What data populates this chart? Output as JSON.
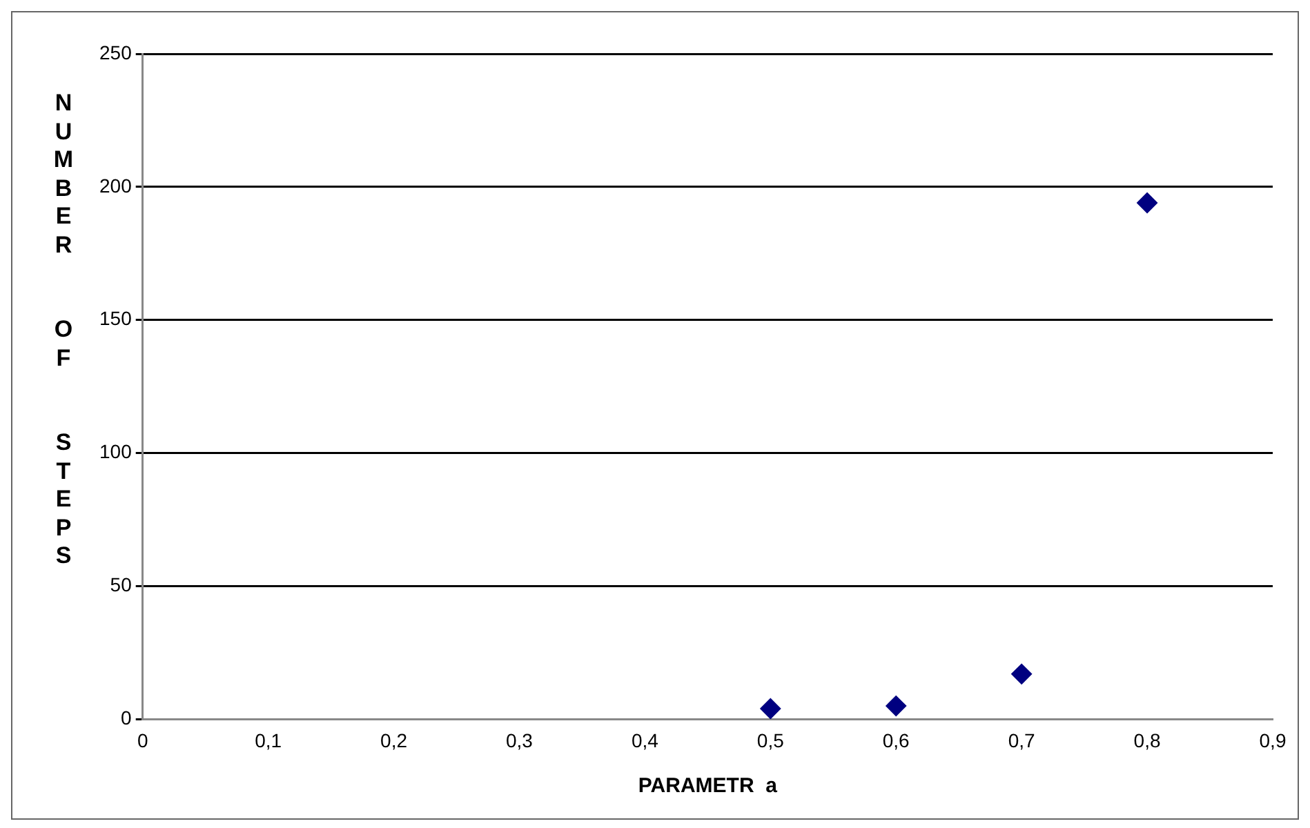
{
  "chart_data": {
    "type": "scatter",
    "xlabel": "PARAMETR  a",
    "ylabel": "NUMBER  OF  STEPS",
    "x": [
      0.5,
      0.6,
      0.7,
      0.8
    ],
    "series": [
      {
        "color": "#000080",
        "values": [
          4,
          5,
          17,
          194
        ]
      }
    ],
    "marker": "diamond",
    "grid": "y",
    "legend": false,
    "xlim": [
      0,
      0.9
    ],
    "xticks": [
      0,
      {
        "value": 0.1,
        "label": "0,1"
      },
      {
        "value": 0.2,
        "label": "0,2"
      },
      {
        "value": 0.3,
        "label": "0,3"
      },
      {
        "value": 0.4,
        "label": "0,4"
      },
      {
        "value": 0.5,
        "label": "0,5"
      },
      {
        "value": 0.6,
        "label": "0,6"
      },
      {
        "value": 0.7,
        "label": "0,7"
      },
      {
        "value": 0.8,
        "label": "0,8"
      },
      {
        "value": 0.9,
        "label": "0,9"
      }
    ],
    "ylim": [
      0,
      250
    ],
    "yticks": [
      0,
      50,
      100,
      150,
      200,
      250
    ]
  }
}
